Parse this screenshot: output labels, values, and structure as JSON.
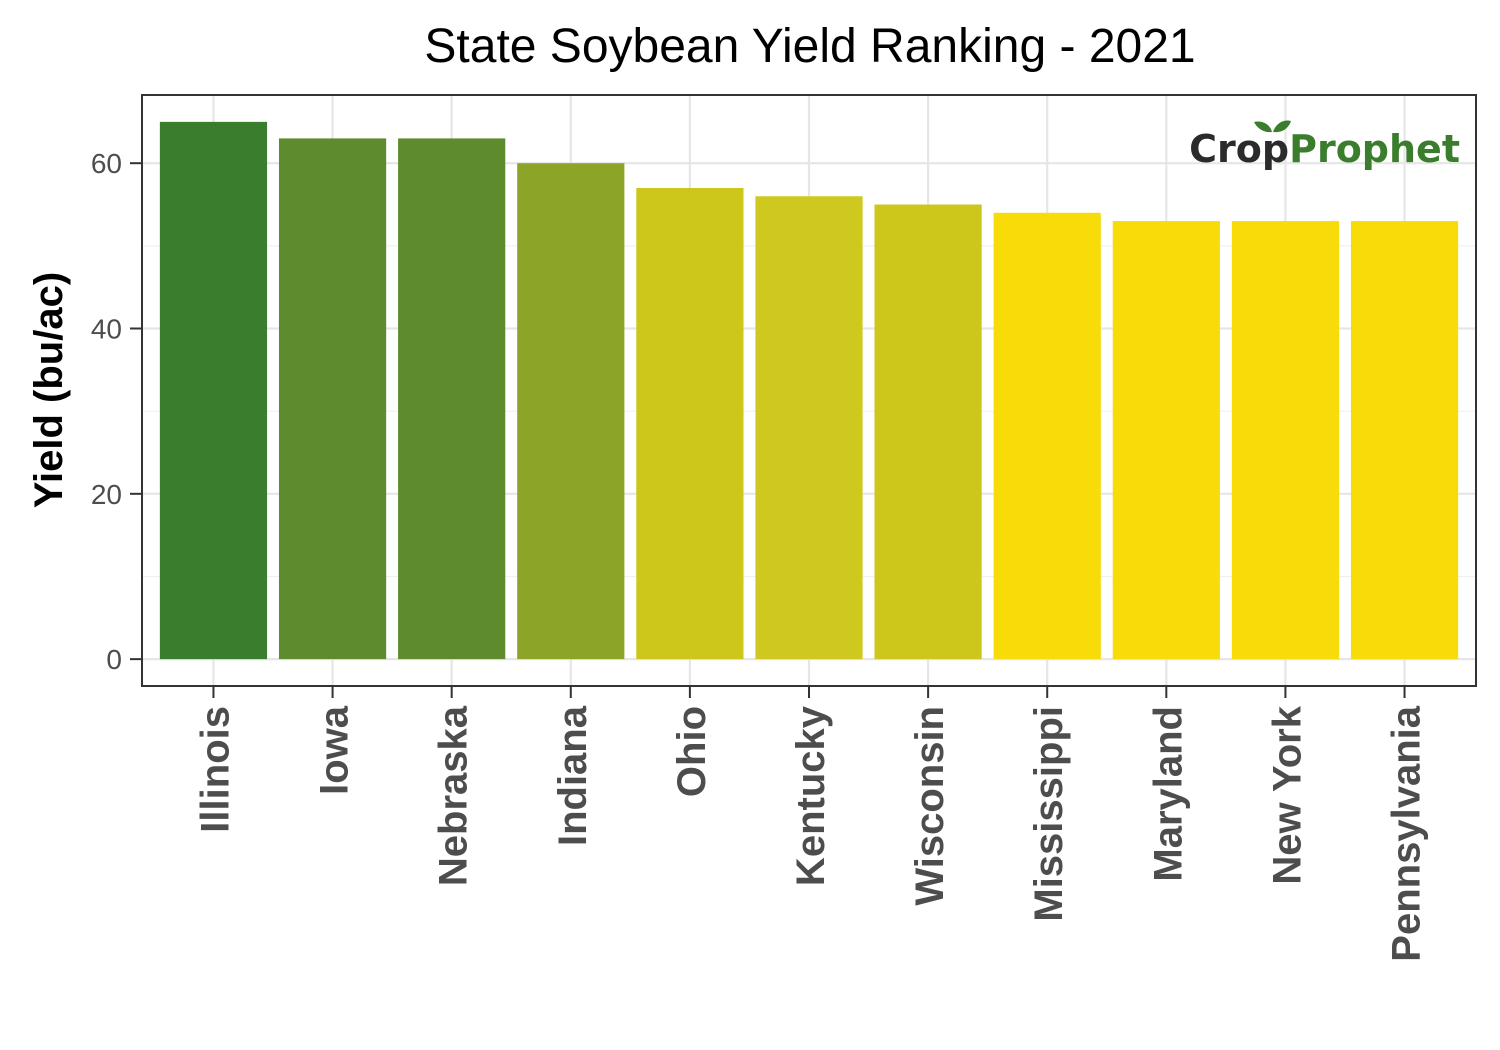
{
  "chart_data": {
    "type": "bar",
    "title": "State Soybean Yield Ranking - 2021",
    "xlabel": "",
    "ylabel": "Yield (bu/ac)",
    "ylim": [
      -3.25,
      68.25
    ],
    "yticks": [
      0,
      20,
      40,
      60
    ],
    "grid": true,
    "legend": "none",
    "categories": [
      "Illinois",
      "Iowa",
      "Nebraska",
      "Indiana",
      "Ohio",
      "Kentucky",
      "Wisconsin",
      "Mississippi",
      "Maryland",
      "New York",
      "Pennsylvania"
    ],
    "values": [
      65,
      63,
      63,
      60,
      57,
      56,
      55,
      54,
      53,
      53,
      53
    ],
    "colors": [
      "#3a7d2c",
      "#5e8b2d",
      "#5e8b2d",
      "#8ca528",
      "#cdc71b",
      "#cfc81e",
      "#cdc71b",
      "#f8dc0a",
      "#f8dc0a",
      "#f8dc0a",
      "#f8dc0a"
    ]
  },
  "branding": {
    "logo_part1": "Crop",
    "logo_part2": "Prophet",
    "logo_color_dark": "#2b2b2b",
    "logo_color_green": "#3a7d2c"
  }
}
